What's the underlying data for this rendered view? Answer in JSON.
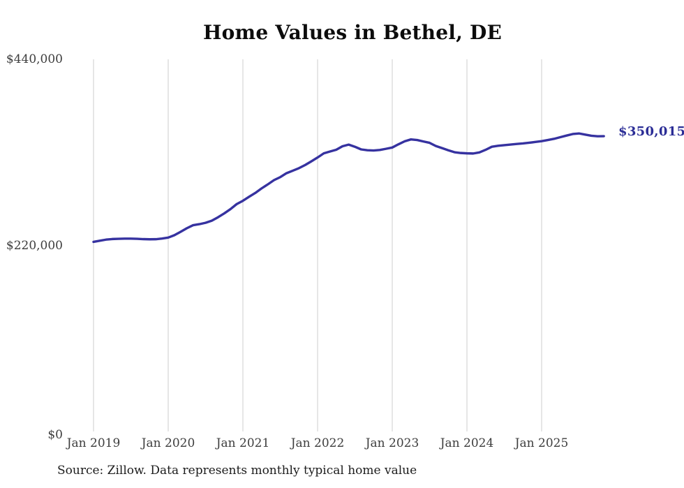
{
  "chart_data": {
    "type": "line",
    "title": "Home Values in Bethel, DE",
    "source": "Source: Zillow. Data represents monthly typical home value",
    "series_name": "Monthly typical home value",
    "end_label": "$350,015",
    "line_color": "#3632a0",
    "end_label_color": "#2b2d96",
    "gridline_color": "#cccccc",
    "grid": "vertical-only",
    "legend": "none",
    "ylim": [
      0,
      440000
    ],
    "y_tick_values": [
      0,
      220000,
      440000
    ],
    "y_tick_labels": [
      "$0",
      "$220,000",
      "$440,000"
    ],
    "x_tick_labels": [
      "Jan 2019",
      "Jan 2020",
      "Jan 2021",
      "Jan 2022",
      "Jan 2023",
      "Jan 2024",
      "Jan 2025"
    ],
    "x": [
      "Jan 2019",
      "Feb 2019",
      "Mar 2019",
      "Apr 2019",
      "May 2019",
      "Jun 2019",
      "Jul 2019",
      "Aug 2019",
      "Sep 2019",
      "Oct 2019",
      "Nov 2019",
      "Dec 2019",
      "Jan 2020",
      "Feb 2020",
      "Mar 2020",
      "Apr 2020",
      "May 2020",
      "Jun 2020",
      "Jul 2020",
      "Aug 2020",
      "Sep 2020",
      "Oct 2020",
      "Nov 2020",
      "Dec 2020",
      "Jan 2021",
      "Feb 2021",
      "Mar 2021",
      "Apr 2021",
      "May 2021",
      "Jun 2021",
      "Jul 2021",
      "Aug 2021",
      "Sep 2021",
      "Oct 2021",
      "Nov 2021",
      "Dec 2021",
      "Jan 2022",
      "Feb 2022",
      "Mar 2022",
      "Apr 2022",
      "May 2022",
      "Jun 2022",
      "Jul 2022",
      "Aug 2022",
      "Sep 2022",
      "Oct 2022",
      "Nov 2022",
      "Dec 2022",
      "Jan 2023",
      "Feb 2023",
      "Mar 2023",
      "Apr 2023",
      "May 2023",
      "Jun 2023",
      "Jul 2023",
      "Aug 2023",
      "Sep 2023",
      "Oct 2023",
      "Nov 2023",
      "Dec 2023",
      "Jan 2024",
      "Feb 2024",
      "Mar 2024",
      "Apr 2024",
      "May 2024",
      "Jun 2024",
      "Jul 2024",
      "Aug 2024",
      "Sep 2024",
      "Oct 2024",
      "Nov 2024",
      "Dec 2024",
      "Jan 2025",
      "Feb 2025",
      "Mar 2025",
      "Apr 2025",
      "May 2025",
      "Jun 2025",
      "Jul 2025",
      "Aug 2025",
      "Sep 2025",
      "Oct 2025",
      "Nov 2025"
    ],
    "values": [
      226200,
      227500,
      228800,
      229500,
      229800,
      230000,
      230000,
      229800,
      229400,
      229200,
      229300,
      230100,
      231200,
      234000,
      238000,
      242200,
      245700,
      246900,
      248500,
      251000,
      255000,
      259500,
      264500,
      270400,
      274300,
      279000,
      283500,
      288800,
      293500,
      298500,
      302000,
      306600,
      309500,
      312500,
      316200,
      320500,
      325000,
      329900,
      332000,
      334100,
      338200,
      340100,
      337600,
      334500,
      333500,
      333200,
      333800,
      335200,
      336700,
      340500,
      344000,
      346200,
      345500,
      343800,
      342200,
      338500,
      336000,
      333500,
      331200,
      330300,
      329900,
      329700,
      331000,
      334000,
      337600,
      338700,
      339500,
      340200,
      340900,
      341500,
      342300,
      343200,
      344200,
      345500,
      346900,
      348800,
      350700,
      352500,
      353200,
      351800,
      350500,
      349900,
      350015
    ]
  }
}
